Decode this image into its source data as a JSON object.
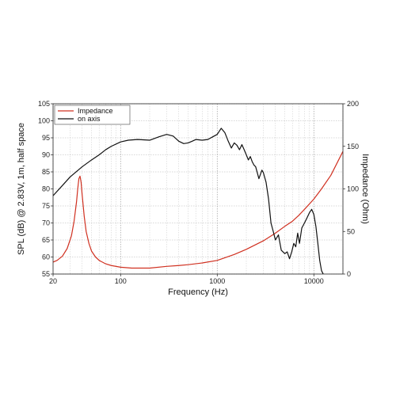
{
  "chart_data": {
    "type": "line",
    "xlabel": "Frequency (Hz)",
    "ylabel": "SPL (dB) @ 2.83V, 1m, half space",
    "y2label": "Impedance (Ohm)",
    "x_scale": "log",
    "xlim": [
      20,
      20000
    ],
    "ylim": [
      55,
      105
    ],
    "y2lim": [
      0,
      200
    ],
    "grid": true,
    "legend_placement": "top-left",
    "x_ticks": [
      {
        "value": 20,
        "label": "20"
      },
      {
        "value": 100,
        "label": "100"
      },
      {
        "value": 1000,
        "label": "1000"
      },
      {
        "value": 10000,
        "label": "10000"
      }
    ],
    "y_ticks": [
      55,
      60,
      65,
      70,
      75,
      80,
      85,
      90,
      95,
      100,
      105
    ],
    "y2_ticks": [
      0,
      50,
      100,
      150,
      200
    ],
    "series": [
      {
        "name": "Impedance",
        "color": "#d03020",
        "axis": "right",
        "x": [
          20,
          22,
          25,
          28,
          31,
          33,
          35,
          36,
          37,
          38,
          39,
          40,
          42,
          44,
          47,
          50,
          55,
          60,
          70,
          80,
          100,
          130,
          160,
          200,
          300,
          400,
          500,
          700,
          1000,
          1500,
          2000,
          3000,
          4000,
          5000,
          6000,
          7000,
          8000,
          10000,
          12000,
          15000,
          20000
        ],
        "values": [
          14,
          16,
          21,
          30,
          45,
          62,
          85,
          100,
          112,
          115,
          108,
          93,
          68,
          50,
          36,
          27,
          20,
          16,
          12,
          10,
          8,
          7,
          7,
          7,
          9,
          10,
          11,
          13,
          16,
          23,
          29,
          39,
          48,
          56,
          62,
          69,
          76,
          88,
          100,
          116,
          144
        ]
      },
      {
        "name": "on axis",
        "color": "#111111",
        "axis": "left",
        "x": [
          20,
          25,
          30,
          40,
          50,
          60,
          70,
          80,
          100,
          120,
          150,
          200,
          250,
          300,
          350,
          400,
          450,
          500,
          550,
          600,
          700,
          800,
          900,
          1000,
          1100,
          1200,
          1300,
          1400,
          1500,
          1600,
          1700,
          1800,
          1900,
          2000,
          2100,
          2200,
          2300,
          2400,
          2500,
          2700,
          2900,
          3000,
          3200,
          3400,
          3600,
          3800,
          4000,
          4300,
          4600,
          5000,
          5300,
          5600,
          5900,
          6200,
          6500,
          6800,
          7100,
          7500,
          8000,
          8500,
          9000,
          9500,
          10000,
          10500,
          11000,
          11500,
          12000,
          12500,
          13000,
          13500,
          14000
        ],
        "values": [
          78,
          81,
          83.5,
          86.5,
          88.5,
          90,
          91.5,
          92.5,
          93.8,
          94.3,
          94.5,
          94.3,
          95.3,
          96,
          95.5,
          94,
          93.3,
          93.5,
          94,
          94.5,
          94.3,
          94.5,
          95.3,
          96,
          97.8,
          96.5,
          94,
          92,
          93.5,
          92.8,
          91.5,
          93,
          91.5,
          90,
          88.5,
          89.5,
          88,
          87,
          86.5,
          83,
          85.5,
          84.8,
          82,
          77,
          70,
          67.5,
          65,
          66.5,
          62,
          61,
          61.5,
          59.5,
          61.5,
          64,
          63,
          67,
          64,
          68.5,
          70,
          71.5,
          73,
          74,
          72.5,
          69,
          64,
          59,
          56,
          55,
          54,
          53.5,
          53
        ]
      }
    ]
  }
}
